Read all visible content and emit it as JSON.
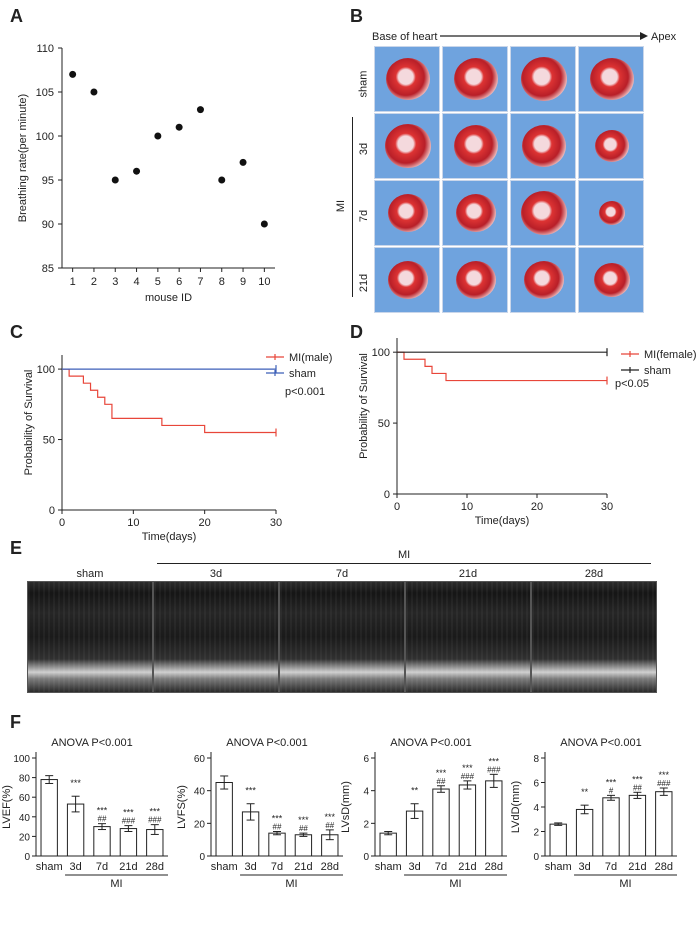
{
  "panels": {
    "a": "A",
    "b": "B",
    "c": "C",
    "d": "D",
    "e": "E",
    "f": "F"
  },
  "panel_b": {
    "direction_start": "Base of heart",
    "direction_end": "Apex",
    "row_labels": [
      "sham",
      "3d",
      "7d",
      "21d"
    ],
    "group_label": "MI"
  },
  "panel_e": {
    "labels": [
      "sham",
      "3d",
      "7d",
      "21d",
      "28d"
    ],
    "group_label": "MI"
  },
  "chart_data": [
    {
      "id": "A",
      "type": "scatter",
      "x": [
        1,
        2,
        3,
        4,
        5,
        6,
        7,
        8,
        9,
        10
      ],
      "y": [
        107,
        105,
        95,
        96,
        100,
        101,
        103,
        95,
        97,
        90
      ],
      "xlabel": "mouse ID",
      "ylabel": "Breathing rate(per minute)",
      "xticks": [
        "1",
        "2",
        "3",
        "4",
        "5",
        "6",
        "7",
        "8",
        "9",
        "10"
      ],
      "yticks": [
        "85",
        "90",
        "95",
        "100",
        "105",
        "110"
      ],
      "xlim": [
        0.5,
        10.5
      ],
      "ylim": [
        85,
        110
      ]
    },
    {
      "id": "C",
      "type": "line",
      "xlabel": "Time(days)",
      "ylabel": "Probability of Survival",
      "xticks": [
        "0",
        "10",
        "20",
        "30"
      ],
      "yticks": [
        "0",
        "50",
        "100"
      ],
      "xlim": [
        0,
        30
      ],
      "ylim": [
        0,
        110
      ],
      "series": [
        {
          "name": "MI(male)",
          "color": "#e8463a",
          "x": [
            0,
            1,
            3,
            4,
            5,
            6,
            7,
            14,
            20,
            30
          ],
          "y": [
            100,
            95,
            90,
            85,
            80,
            75,
            65,
            60,
            55,
            55
          ]
        },
        {
          "name": "sham",
          "color": "#3c5fb8",
          "x": [
            0,
            30
          ],
          "y": [
            100,
            100
          ]
        }
      ],
      "annotation": "p<0.001"
    },
    {
      "id": "D",
      "type": "line",
      "xlabel": "Time(days)",
      "ylabel": "Probability of Survival",
      "xticks": [
        "0",
        "10",
        "20",
        "30"
      ],
      "yticks": [
        "0",
        "50",
        "100"
      ],
      "xlim": [
        0,
        30
      ],
      "ylim": [
        0,
        110
      ],
      "series": [
        {
          "name": "MI(female)",
          "color": "#e8463a",
          "x": [
            0,
            1,
            4,
            5,
            7,
            30
          ],
          "y": [
            100,
            95,
            90,
            85,
            80,
            80
          ]
        },
        {
          "name": "sham",
          "color": "#222222",
          "x": [
            0,
            30
          ],
          "y": [
            100,
            100
          ]
        }
      ],
      "annotation": "p<0.05"
    },
    {
      "id": "F1",
      "type": "bar",
      "title": "ANOVA  P<0.001",
      "ylabel": "LVEF(%)",
      "categories": [
        "sham",
        "3d",
        "7d",
        "21d",
        "28d"
      ],
      "values": [
        78,
        53,
        30,
        28,
        27
      ],
      "errors": [
        4,
        8,
        3,
        3,
        5
      ],
      "yticks": [
        "0",
        "20",
        "40",
        "60",
        "80",
        "100"
      ],
      "ylim": [
        0,
        100
      ],
      "sig_top": [
        "",
        "***",
        "***",
        "***",
        "***"
      ],
      "sig_bottom": [
        "",
        "",
        "##",
        "###",
        "###"
      ],
      "group_label": "MI"
    },
    {
      "id": "F2",
      "type": "bar",
      "title": "ANOVA  P<0.001",
      "ylabel": "LVFS(%)",
      "categories": [
        "sham",
        "3d",
        "7d",
        "21d",
        "28d"
      ],
      "values": [
        45,
        27,
        14,
        13,
        13
      ],
      "errors": [
        4,
        5,
        1,
        1,
        3
      ],
      "yticks": [
        "0",
        "20",
        "40",
        "60"
      ],
      "ylim": [
        0,
        60
      ],
      "sig_top": [
        "",
        "***",
        "***",
        "***",
        "***"
      ],
      "sig_bottom": [
        "",
        "",
        "##",
        "##",
        "##"
      ],
      "group_label": "MI"
    },
    {
      "id": "F3",
      "type": "bar",
      "title": "ANOVA  P<0.001",
      "ylabel": "LVsD(mm)",
      "categories": [
        "sham",
        "3d",
        "7d",
        "21d",
        "28d"
      ],
      "values": [
        1.4,
        2.75,
        4.1,
        4.35,
        4.6
      ],
      "errors": [
        0.1,
        0.45,
        0.2,
        0.25,
        0.4
      ],
      "yticks": [
        "0",
        "2",
        "4",
        "6"
      ],
      "ylim": [
        0,
        6
      ],
      "sig_top": [
        "",
        "**",
        "***",
        "***",
        "***"
      ],
      "sig_bottom": [
        "",
        "",
        "##",
        "###",
        "###"
      ],
      "group_label": "MI"
    },
    {
      "id": "F4",
      "type": "bar",
      "title": "ANOVA  P<0.001",
      "ylabel": "LVdD(mm)",
      "categories": [
        "sham",
        "3d",
        "7d",
        "21d",
        "28d"
      ],
      "values": [
        2.6,
        3.8,
        4.75,
        4.95,
        5.25
      ],
      "errors": [
        0.1,
        0.35,
        0.2,
        0.25,
        0.3
      ],
      "yticks": [
        "0",
        "2",
        "4",
        "6",
        "8"
      ],
      "ylim": [
        0,
        8
      ],
      "sig_top": [
        "",
        "**",
        "***",
        "***",
        "***"
      ],
      "sig_bottom": [
        "",
        "",
        "#",
        "##",
        "###"
      ],
      "group_label": "MI"
    }
  ]
}
